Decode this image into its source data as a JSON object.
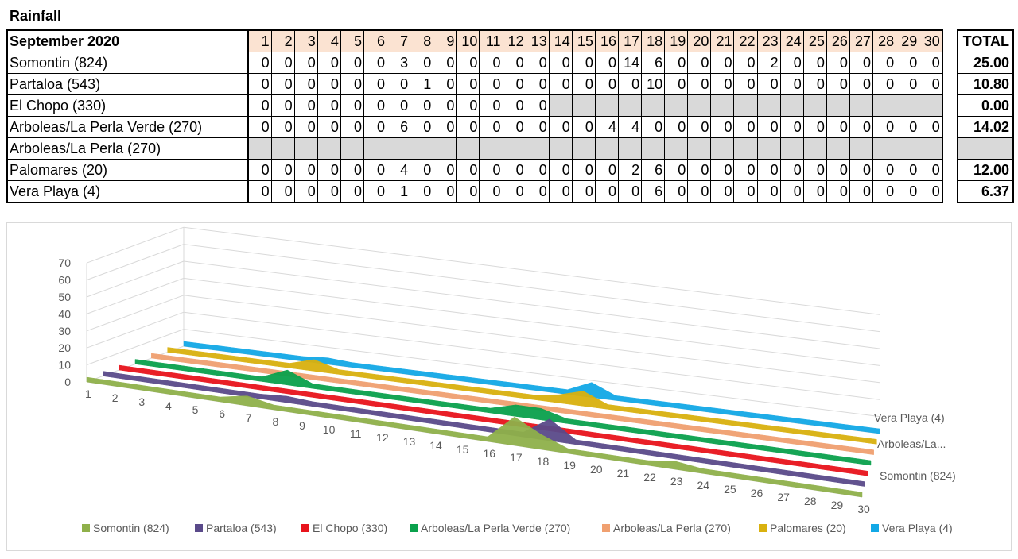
{
  "page": {
    "title": "Rainfall"
  },
  "table": {
    "month_label": "September 2020",
    "total_label": "TOTAL",
    "days": [
      "1",
      "2",
      "3",
      "4",
      "5",
      "6",
      "7",
      "8",
      "9",
      "10",
      "11",
      "12",
      "13",
      "14",
      "15",
      "16",
      "17",
      "18",
      "19",
      "20",
      "21",
      "22",
      "23",
      "24",
      "25",
      "26",
      "27",
      "28",
      "29",
      "30"
    ],
    "rows": [
      {
        "name": "Somontin (824)",
        "values": [
          "0",
          "0",
          "0",
          "0",
          "0",
          "0",
          "3",
          "0",
          "0",
          "0",
          "0",
          "0",
          "0",
          "0",
          "0",
          "0",
          "14",
          "6",
          "0",
          "0",
          "0",
          "0",
          "2",
          "0",
          "0",
          "0",
          "0",
          "0",
          "0",
          "0"
        ],
        "total": "25.00"
      },
      {
        "name": "Partaloa (543)",
        "values": [
          "0",
          "0",
          "0",
          "0",
          "0",
          "0",
          "0",
          "1",
          "0",
          "0",
          "0",
          "0",
          "0",
          "0",
          "0",
          "0",
          "0",
          "10",
          "0",
          "0",
          "0",
          "0",
          "0",
          "0",
          "0",
          "0",
          "0",
          "0",
          "0",
          "0"
        ],
        "total": "10.80"
      },
      {
        "name": "El Chopo (330)",
        "values": [
          "0",
          "0",
          "0",
          "0",
          "0",
          "0",
          "0",
          "0",
          "0",
          "0",
          "0",
          "0",
          "0",
          "",
          "",
          "",
          "",
          "",
          "",
          "",
          "",
          "",
          "",
          "",
          "",
          "",
          "",
          "",
          "",
          ""
        ],
        "total": "0.00"
      },
      {
        "name": "Arboleas/La Perla Verde (270)",
        "values": [
          "0",
          "0",
          "0",
          "0",
          "0",
          "0",
          "6",
          "0",
          "0",
          "0",
          "0",
          "0",
          "0",
          "0",
          "0",
          "4",
          "4",
          "0",
          "0",
          "0",
          "0",
          "0",
          "0",
          "0",
          "0",
          "0",
          "0",
          "0",
          "0",
          "0"
        ],
        "total": "14.02"
      },
      {
        "name": "Arboleas/La Perla (270)",
        "values": [
          "",
          "",
          "",
          "",
          "",
          "",
          "",
          "",
          "",
          "",
          "",
          "",
          "",
          "",
          "",
          "",
          "",
          "",
          "",
          "",
          "",
          "",
          "",
          "",
          "",
          "",
          "",
          "",
          "",
          ""
        ],
        "total": ""
      },
      {
        "name": "Palomares (20)",
        "values": [
          "0",
          "0",
          "0",
          "0",
          "0",
          "0",
          "4",
          "0",
          "0",
          "0",
          "0",
          "0",
          "0",
          "0",
          "0",
          "0",
          "2",
          "6",
          "0",
          "0",
          "0",
          "0",
          "0",
          "0",
          "0",
          "0",
          "0",
          "0",
          "0",
          "0"
        ],
        "total": "12.00"
      },
      {
        "name": "Vera Playa (4)",
        "values": [
          "0",
          "0",
          "0",
          "0",
          "0",
          "0",
          "1",
          "0",
          "0",
          "0",
          "0",
          "0",
          "0",
          "0",
          "0",
          "0",
          "0",
          "6",
          "0",
          "0",
          "0",
          "0",
          "0",
          "0",
          "0",
          "0",
          "0",
          "0",
          "0",
          "0"
        ],
        "total": "6.37"
      }
    ]
  },
  "chart_data": {
    "type": "area",
    "x": [
      "1",
      "2",
      "3",
      "4",
      "5",
      "6",
      "7",
      "8",
      "9",
      "10",
      "11",
      "12",
      "13",
      "14",
      "15",
      "16",
      "17",
      "18",
      "19",
      "20",
      "21",
      "22",
      "23",
      "24",
      "25",
      "26",
      "27",
      "28",
      "29",
      "30"
    ],
    "yticks": [
      "0",
      "10",
      "20",
      "30",
      "40",
      "50",
      "60",
      "70"
    ],
    "ylim": [
      0,
      70
    ],
    "grid": true,
    "legend_position": "bottom",
    "depth_labels": [
      "Vera Playa (4)",
      "Arboleas/La...",
      "Somontin (824)"
    ],
    "series": [
      {
        "name": "Somontin (824)",
        "color": "#8fb04a",
        "values": [
          0,
          0,
          0,
          0,
          0,
          0,
          3,
          0,
          0,
          0,
          0,
          0,
          0,
          0,
          0,
          0,
          14,
          6,
          0,
          0,
          0,
          0,
          2,
          0,
          0,
          0,
          0,
          0,
          0,
          0
        ]
      },
      {
        "name": "Partaloa (543)",
        "color": "#5a4a8a",
        "values": [
          0,
          0,
          0,
          0,
          0,
          0,
          0,
          1,
          0,
          0,
          0,
          0,
          0,
          0,
          0,
          0,
          0,
          10,
          0,
          0,
          0,
          0,
          0,
          0,
          0,
          0,
          0,
          0,
          0,
          0
        ]
      },
      {
        "name": "El Chopo (330)",
        "color": "#e8141c",
        "values": [
          0,
          0,
          0,
          0,
          0,
          0,
          0,
          0,
          0,
          0,
          0,
          0,
          0,
          0,
          0,
          0,
          0,
          0,
          0,
          0,
          0,
          0,
          0,
          0,
          0,
          0,
          0,
          0,
          0,
          0
        ]
      },
      {
        "name": "Arboleas/La Perla Verde (270)",
        "color": "#0aa14c",
        "values": [
          0,
          0,
          0,
          0,
          0,
          0,
          6,
          0,
          0,
          0,
          0,
          0,
          0,
          0,
          0,
          4,
          4,
          0,
          0,
          0,
          0,
          0,
          0,
          0,
          0,
          0,
          0,
          0,
          0,
          0
        ]
      },
      {
        "name": "Arboleas/La Perla (270)",
        "color": "#f0a070",
        "values": [
          0,
          0,
          0,
          0,
          0,
          0,
          0,
          0,
          0,
          0,
          0,
          0,
          0,
          0,
          0,
          0,
          0,
          0,
          0,
          0,
          0,
          0,
          0,
          0,
          0,
          0,
          0,
          0,
          0,
          0
        ]
      },
      {
        "name": "Palomares (20)",
        "color": "#d9b10e",
        "values": [
          0,
          0,
          0,
          0,
          0,
          0,
          4,
          0,
          0,
          0,
          0,
          0,
          0,
          0,
          0,
          0,
          2,
          6,
          0,
          0,
          0,
          0,
          0,
          0,
          0,
          0,
          0,
          0,
          0,
          0
        ]
      },
      {
        "name": "Vera Playa (4)",
        "color": "#12a8e6",
        "values": [
          0,
          0,
          0,
          0,
          0,
          0,
          1,
          0,
          0,
          0,
          0,
          0,
          0,
          0,
          0,
          0,
          0,
          6,
          0,
          0,
          0,
          0,
          0,
          0,
          0,
          0,
          0,
          0,
          0,
          0
        ]
      }
    ]
  }
}
